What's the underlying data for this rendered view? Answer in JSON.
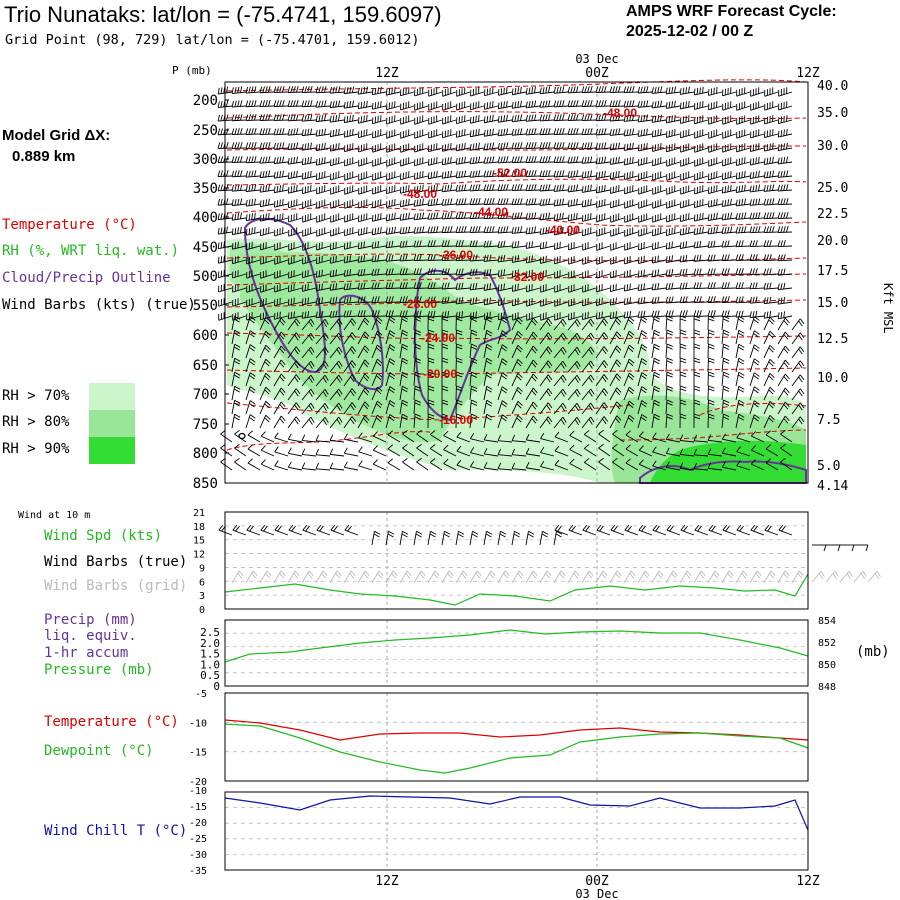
{
  "header": {
    "title": "Trio Nunataks:  lat/lon = (-75.4741, 159.6097)",
    "grid_point": "Grid Point (98, 729) lat/lon = (-75.4701, 159.6012)",
    "cycle_label": "AMPS WRF Forecast Cycle:",
    "cycle_value": "2025-12-02 / 00  Z",
    "model_grid_label": "Model Grid ΔX:",
    "model_grid_value": "0.889 km"
  },
  "time_axis": {
    "ticks": [
      "12Z",
      "00Z",
      "12Z"
    ],
    "date_label": "03 Dec"
  },
  "legend": {
    "temperature": "Temperature (°C)",
    "rh": "RH (%, WRT liq. wat.)",
    "cloud": "Cloud/Precip Outline",
    "wind": "Wind Barbs (kts) (true)",
    "rh_bins": [
      "RH > 70%",
      "RH > 80%",
      "RH > 90%"
    ]
  },
  "colors": {
    "temperature": "#dd0000",
    "rh70": "#ccf5cc",
    "rh80": "#99e699",
    "rh90": "#33dd33",
    "cloud": "#663399",
    "green_line": "#22bb22",
    "blue_line": "#1111aa",
    "grid": "#aaaaaa"
  },
  "chart_data": [
    {
      "type": "heatmap",
      "name": "upper_air_cross_section",
      "ylabel_left": "P (mb)",
      "ylabel_right": "Kft MSL",
      "y_ticks_left": [
        "200",
        "250",
        "300",
        "350",
        "400",
        "450",
        "500",
        "550",
        "600",
        "650",
        "700",
        "750",
        "800",
        "850"
      ],
      "y_ticks_right": [
        "40.0",
        "35.0",
        "30.0",
        "25.0",
        "22.5",
        "20.0",
        "17.5",
        "15.0",
        "12.5",
        "10.0",
        "7.5",
        "5.0",
        "4.14"
      ],
      "temperature_labels": [
        "-48.00",
        "-52.00",
        "-48.00",
        "-44.00",
        "-40.00",
        "-36.00",
        "-32.00",
        "-28.00",
        "-24.00",
        "-20.00",
        "-16.00"
      ]
    },
    {
      "type": "line",
      "name": "wind_10m",
      "panel_title": "Wind at 10 m",
      "labels": [
        "Wind Spd (kts)",
        "Wind Barbs (true)",
        "Wind Barbs (grid)"
      ],
      "y_ticks": [
        "21",
        "18",
        "15",
        "12",
        "9",
        "6",
        "3",
        "0"
      ],
      "ylim": [
        0,
        21
      ]
    },
    {
      "type": "line",
      "name": "precip_pressure",
      "labels": [
        "Precip (mm)",
        "liq. equiv.",
        "1-hr accum",
        "Pressure (mb)"
      ],
      "y_ticks_left": [
        "2.5",
        "2.0",
        "1.5",
        "1.0",
        "0.5",
        "0"
      ],
      "y_ticks_right": [
        "854",
        "852",
        "850",
        "848"
      ],
      "unit_right": "(mb)",
      "ylim_right": [
        848,
        854
      ]
    },
    {
      "type": "line",
      "name": "temperature_dewpoint",
      "labels": [
        "Temperature (°C)",
        "Dewpoint (°C)"
      ],
      "y_ticks": [
        "-5",
        "-10",
        "-15",
        "-20"
      ],
      "ylim": [
        -20,
        -5
      ]
    },
    {
      "type": "line",
      "name": "wind_chill",
      "labels": [
        "Wind Chill T (°C)"
      ],
      "y_ticks": [
        "-10",
        "-15",
        "-20",
        "-25",
        "-30",
        "-35"
      ],
      "ylim": [
        -35,
        -10
      ]
    }
  ]
}
